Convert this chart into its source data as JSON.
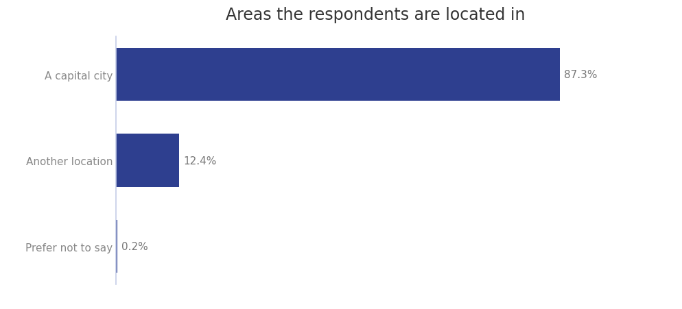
{
  "title": "Areas the respondents are located in",
  "categories": [
    "A capital city",
    "Another location",
    "Prefer not to say"
  ],
  "values": [
    87.3,
    12.4,
    0.2
  ],
  "labels": [
    "87.3%",
    "12.4%",
    "0.2%"
  ],
  "bar_color": "#2e3f8f",
  "background_color": "#ffffff",
  "spine_color": "#c5cde8",
  "title_fontsize": 17,
  "label_fontsize": 11,
  "tick_fontsize": 11,
  "tick_color": "#888888",
  "xlim": [
    0,
    100
  ]
}
